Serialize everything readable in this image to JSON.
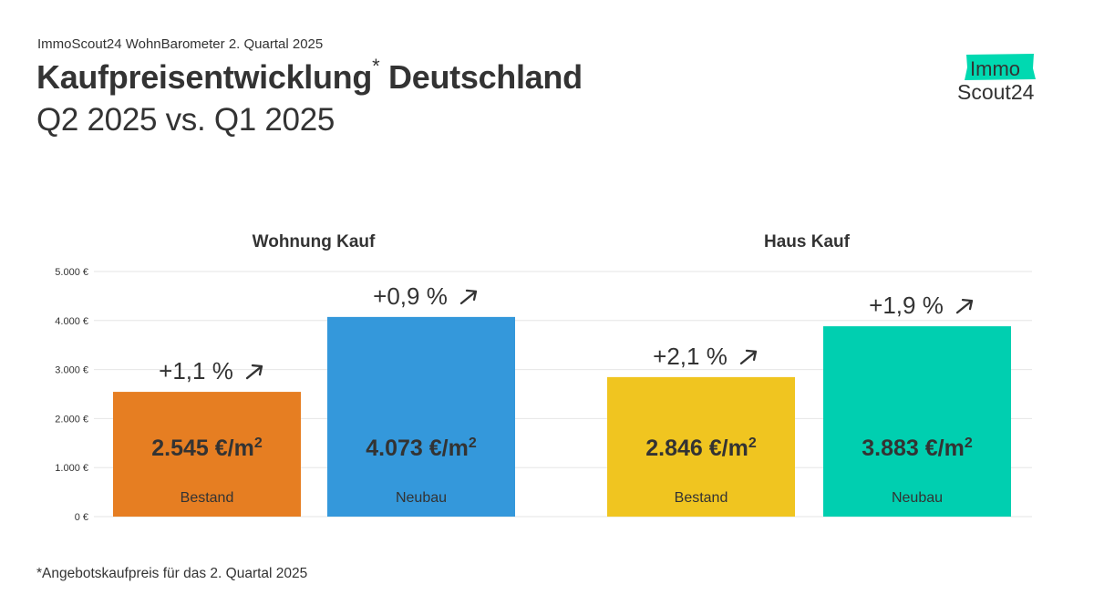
{
  "header": {
    "kicker": "ImmoScout24 WohnBarometer 2. Quartal 2025",
    "title": "Kaufpreisentwicklung",
    "title_mark": "*",
    "title_rest": " Deutschland",
    "subtitle": "Q2 2025 vs. Q1 2025"
  },
  "logo": {
    "text_top": "Immo",
    "text_bottom": "Scout24",
    "accent_color": "#00D9B1"
  },
  "footnote": "*Angebotskaufpreis für das 2. Quartal 2025",
  "chart_data": {
    "type": "bar",
    "unit": "€/m²",
    "ylim": [
      0,
      5000
    ],
    "yticks": [
      {
        "value": 0,
        "label": "0 €"
      },
      {
        "value": 1000,
        "label": "1.000 €"
      },
      {
        "value": 2000,
        "label": "2.000 €"
      },
      {
        "value": 3000,
        "label": "3.000 €"
      },
      {
        "value": 4000,
        "label": "4.000 €"
      },
      {
        "value": 5000,
        "label": "5.000 €"
      }
    ],
    "grid": true,
    "groups": [
      {
        "name": "Wohnung Kauf",
        "bars": [
          {
            "category": "Bestand",
            "value": 2545,
            "value_label": "2.545 €/m",
            "change": "+1,1 %",
            "color": "#E67E22"
          },
          {
            "category": "Neubau",
            "value": 4073,
            "value_label": "4.073 €/m",
            "change": "+0,9 %",
            "color": "#3498DB"
          }
        ]
      },
      {
        "name": "Haus Kauf",
        "bars": [
          {
            "category": "Bestand",
            "value": 2846,
            "value_label": "2.846 €/m",
            "change": "+2,1 %",
            "color": "#F0C520"
          },
          {
            "category": "Neubau",
            "value": 3883,
            "value_label": "3.883 €/m",
            "change": "+1,9 %",
            "color": "#00CFB0"
          }
        ]
      }
    ]
  }
}
